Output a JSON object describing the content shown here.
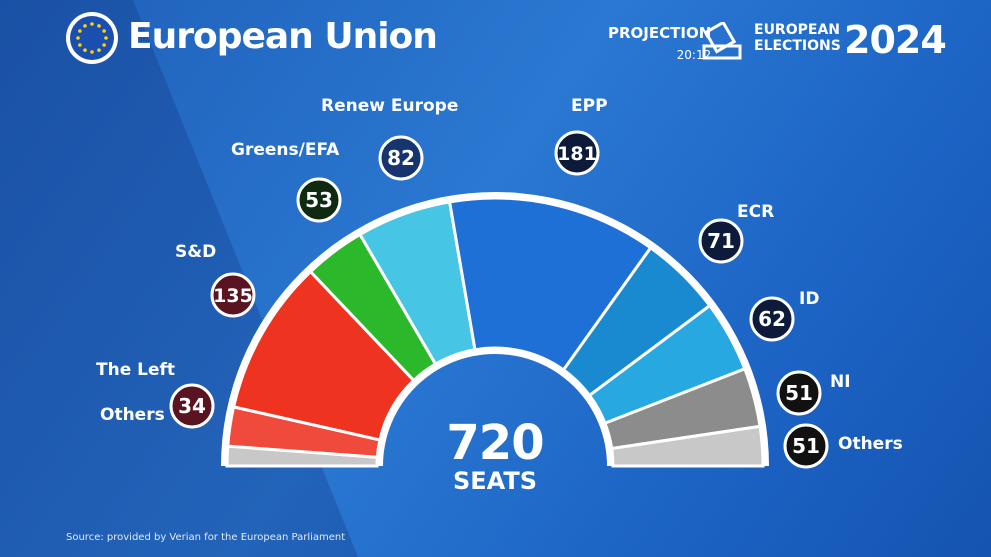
{
  "header": {
    "title": "European Union",
    "projection": "PROJECTION",
    "time": "20:12",
    "elections_line1": "EUROPEAN",
    "elections_line2": "ELECTIONS",
    "year": "2024"
  },
  "source": "Source: provided by Verian for the European Parliament",
  "chart_data": {
    "type": "pie",
    "total": "720",
    "total_label": "SEATS",
    "segments": [
      {
        "name": "Others",
        "value": 17,
        "color": "#c8c8c8",
        "badge": ""
      },
      {
        "name": "The Left",
        "value": 34,
        "color": "#ef4a3c",
        "badge": "34"
      },
      {
        "name": "S&D",
        "value": 135,
        "color": "#ee3420",
        "badge": "135"
      },
      {
        "name": "Greens/EFA",
        "value": 53,
        "color": "#2bb82b",
        "badge": "53"
      },
      {
        "name": "Renew Europe",
        "value": 82,
        "color": "#46c6e4",
        "badge": "82"
      },
      {
        "name": "EPP",
        "value": 181,
        "color": "#1e6fd6",
        "badge": "181"
      },
      {
        "name": "ECR",
        "value": 71,
        "color": "#1a8ad0",
        "badge": "71"
      },
      {
        "name": "ID",
        "value": 62,
        "color": "#27a8e0",
        "badge": "62"
      },
      {
        "name": "NI",
        "value": 51,
        "color": "#8c8c8c",
        "badge": "51"
      },
      {
        "name": "Others",
        "value": 34,
        "color": "#c8c8c8",
        "badge": "51"
      }
    ],
    "badge_colors": {
      "left": "#5a1320",
      "sd": "#5a1320",
      "greens": "#0f2a10",
      "renew": "#153470",
      "right": "#0d1a3a",
      "ni": "#111111"
    }
  }
}
